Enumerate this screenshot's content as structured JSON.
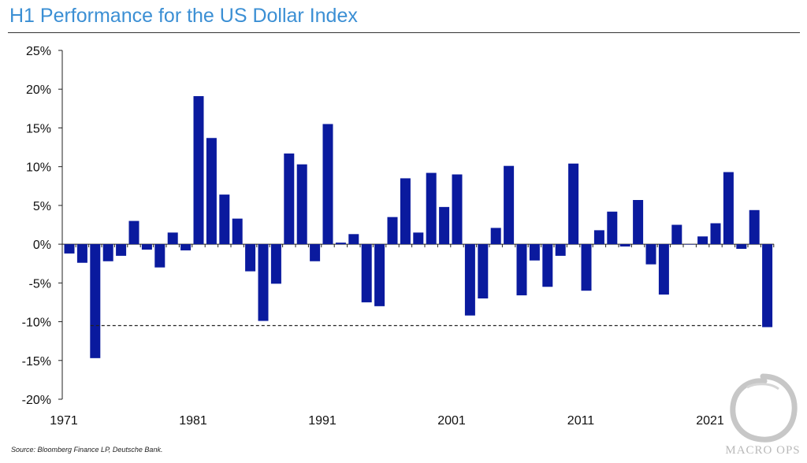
{
  "header": {
    "title": "H1 Performance for the US Dollar Index"
  },
  "footer": {
    "source": "Source: Bloomberg Finance LP, Deutsche Bank."
  },
  "watermark": {
    "text": "MACRO OPS"
  },
  "colors": {
    "bar": "#0a1a9e",
    "title": "#3b8fd4",
    "axis": "#222222",
    "reference_line": "#222222"
  },
  "chart_data": {
    "type": "bar",
    "title": "H1 Performance for the US Dollar Index",
    "xlabel": "",
    "ylabel": "",
    "x": [
      1971,
      1972,
      1973,
      1974,
      1975,
      1976,
      1977,
      1978,
      1979,
      1980,
      1981,
      1982,
      1983,
      1984,
      1985,
      1986,
      1987,
      1988,
      1989,
      1990,
      1991,
      1992,
      1993,
      1994,
      1995,
      1996,
      1997,
      1998,
      1999,
      2000,
      2001,
      2002,
      2003,
      2004,
      2005,
      2006,
      2007,
      2008,
      2009,
      2010,
      2011,
      2012,
      2013,
      2014,
      2015,
      2016,
      2017,
      2018,
      2019,
      2020,
      2021,
      2022,
      2023,
      2024,
      2025
    ],
    "values": [
      -1.2,
      -2.4,
      -14.7,
      -2.2,
      -1.5,
      3.0,
      -0.7,
      -3.0,
      1.5,
      -0.8,
      19.1,
      13.7,
      6.4,
      3.3,
      -3.5,
      -9.9,
      -5.1,
      11.7,
      10.3,
      -2.2,
      15.5,
      0.2,
      1.3,
      -7.5,
      -8.0,
      3.5,
      8.5,
      1.5,
      9.2,
      4.8,
      9.0,
      -9.2,
      -7.0,
      2.1,
      10.1,
      -6.6,
      -2.1,
      -5.5,
      -1.5,
      10.4,
      -6.0,
      1.8,
      4.2,
      -0.3,
      5.7,
      -2.6,
      -6.5,
      2.5,
      0.0,
      1.0,
      2.7,
      9.3,
      -0.6,
      4.4,
      -10.7
    ],
    "ylim": [
      -20,
      25
    ],
    "yticks": [
      -20,
      -15,
      -10,
      -5,
      0,
      5,
      10,
      15,
      20,
      25
    ],
    "ytick_labels": [
      "-20%",
      "-15%",
      "-10%",
      "-5%",
      "0%",
      "5%",
      "10%",
      "15%",
      "20%",
      "25%"
    ],
    "xticks": [
      1971,
      1981,
      1991,
      2001,
      2011,
      2021
    ],
    "xtick_labels": [
      "1971",
      "1981",
      "1991",
      "2001",
      "2011",
      "2021"
    ],
    "reference_line": {
      "value": -10.5,
      "from_x": 1973,
      "to_x": 2025,
      "style": "dashed"
    },
    "grid": false,
    "legend": "none"
  }
}
